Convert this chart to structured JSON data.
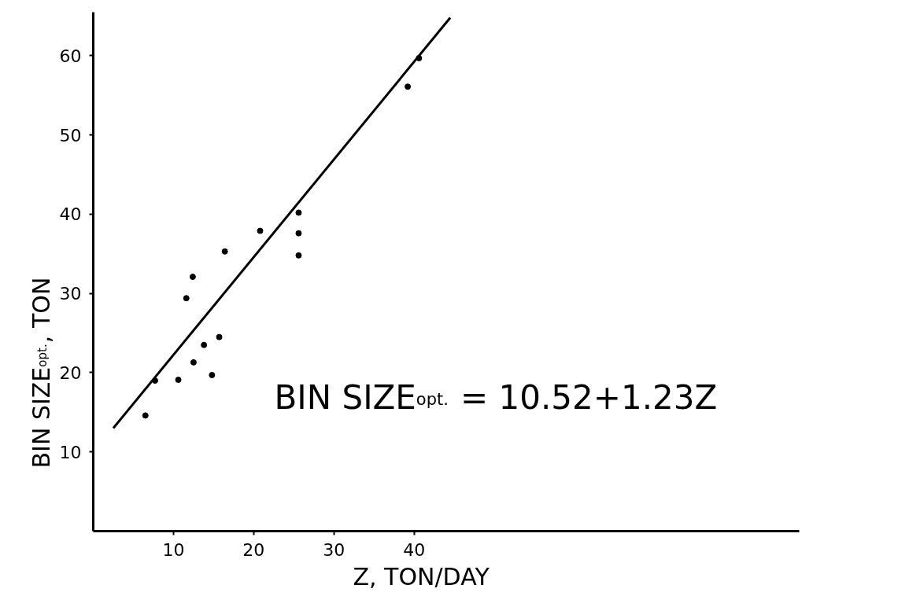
{
  "chart_data": {
    "type": "scatter",
    "xlabel": "Z, TON/DAY",
    "ylabel": "BIN SIZE$_{opt.}$, TON",
    "xlim": [
      0,
      88
    ],
    "ylim": [
      0,
      65.5
    ],
    "xticks": [
      10,
      20,
      30,
      40
    ],
    "yticks": [
      10,
      20,
      30,
      40,
      50,
      60
    ],
    "grid": false,
    "series": [
      {
        "color": "#000000",
        "marker": "circle",
        "x": [
          6.5,
          7.7,
          10.6,
          11.6,
          12.4,
          12.5,
          13.8,
          14.8,
          15.7,
          16.4,
          20.8,
          25.6,
          25.6,
          25.6,
          39.2,
          40.6
        ],
        "values": [
          14.6,
          19.0,
          19.1,
          29.4,
          32.1,
          21.3,
          23.5,
          19.7,
          24.5,
          35.3,
          37.9,
          40.2,
          37.6,
          34.8,
          56.1,
          59.7
        ]
      },
      {
        "type": "line",
        "color": "#000000",
        "line_style": "solid",
        "x": [
          2.5,
          44.5
        ],
        "values": [
          13.0,
          64.8
        ]
      }
    ],
    "annotations": [
      "BIN SIZE$_{opt.}$ = 10.52+1.23Z"
    ]
  }
}
